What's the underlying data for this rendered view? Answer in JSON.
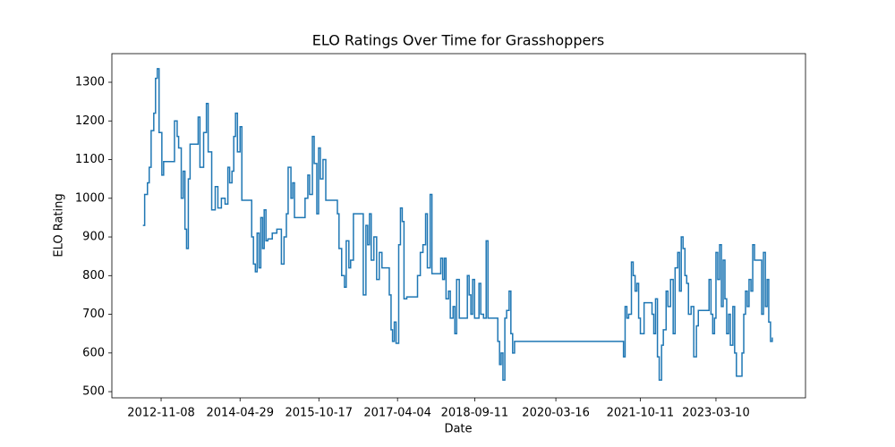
{
  "chart_data": {
    "type": "line",
    "drawstyle": "steps-post",
    "title": "ELO Ratings Over Time for Grasshoppers",
    "xlabel": "Date",
    "ylabel": "ELO Rating",
    "color": "#1f77b4",
    "xlim": [
      "2011-12-09",
      "2024-11-08"
    ],
    "xticks": [
      "2012-11-08",
      "2014-04-29",
      "2015-10-17",
      "2017-04-04",
      "2018-09-11",
      "2020-03-16",
      "2021-10-11",
      "2023-03-10"
    ],
    "ylim": [
      484,
      1374
    ],
    "yticks": [
      500,
      600,
      700,
      800,
      900,
      1000,
      1100,
      1200,
      1300
    ],
    "x": [
      "2012-07-07",
      "2012-07-19",
      "2012-08-07",
      "2012-08-19",
      "2012-09-01",
      "2012-09-19",
      "2012-10-01",
      "2012-10-13",
      "2012-10-25",
      "2012-11-13",
      "2012-11-25",
      "2013-01-19",
      "2013-02-07",
      "2013-02-25",
      "2013-03-07",
      "2013-03-25",
      "2013-04-07",
      "2013-04-19",
      "2013-04-30",
      "2013-05-12",
      "2013-05-24",
      "2013-07-06",
      "2013-07-18",
      "2013-07-30",
      "2013-08-24",
      "2013-09-12",
      "2013-09-24",
      "2013-10-18",
      "2013-11-11",
      "2013-11-29",
      "2013-12-23",
      "2014-01-17",
      "2014-02-05",
      "2014-02-17",
      "2014-03-05",
      "2014-03-17",
      "2014-03-29",
      "2014-04-11",
      "2014-04-29",
      "2014-05-11",
      "2014-07-05",
      "2014-07-17",
      "2014-07-29",
      "2014-08-11",
      "2014-08-23",
      "2014-09-05",
      "2014-09-17",
      "2014-09-29",
      "2014-10-10",
      "2014-10-22",
      "2014-11-04",
      "2014-12-04",
      "2015-01-04",
      "2015-02-04",
      "2015-02-22",
      "2015-03-10",
      "2015-03-22",
      "2015-04-10",
      "2015-04-22",
      "2015-05-04",
      "2015-06-21",
      "2015-07-15",
      "2015-08-03",
      "2015-08-15",
      "2015-09-03",
      "2015-09-15",
      "2015-10-03",
      "2015-10-15",
      "2015-10-27",
      "2015-11-14",
      "2015-12-03",
      "2016-02-02",
      "2016-02-20",
      "2016-03-02",
      "2016-03-20",
      "2016-04-08",
      "2016-04-20",
      "2016-05-08",
      "2016-05-20",
      "2016-06-08",
      "2016-07-26",
      "2016-08-14",
      "2016-09-01",
      "2016-09-13",
      "2016-09-25",
      "2016-10-07",
      "2016-10-25",
      "2016-11-13",
      "2016-12-01",
      "2016-12-19",
      "2017-01-25",
      "2017-02-07",
      "2017-02-19",
      "2017-03-01",
      "2017-03-13",
      "2017-03-25",
      "2017-04-12",
      "2017-04-24",
      "2017-05-06",
      "2017-05-18",
      "2017-06-06",
      "2017-07-30",
      "2017-08-18",
      "2017-09-06",
      "2017-09-24",
      "2017-10-12",
      "2017-10-24",
      "2017-11-12",
      "2017-11-24",
      "2018-01-11",
      "2018-01-23",
      "2018-02-05",
      "2018-02-17",
      "2018-02-28",
      "2018-03-17",
      "2018-03-29",
      "2018-04-17",
      "2018-04-29",
      "2018-05-11",
      "2018-05-29",
      "2018-06-29",
      "2018-07-23",
      "2018-08-04",
      "2018-08-16",
      "2018-08-28",
      "2018-09-10",
      "2018-09-28",
      "2018-10-10",
      "2018-10-22",
      "2018-11-10",
      "2018-11-28",
      "2018-12-10",
      "2019-01-28",
      "2019-02-15",
      "2019-02-27",
      "2019-03-10",
      "2019-03-22",
      "2019-04-04",
      "2019-04-16",
      "2019-05-03",
      "2019-05-15",
      "2019-05-27",
      "2019-06-09",
      "2021-06-07",
      "2021-06-19",
      "2021-06-30",
      "2021-07-12",
      "2021-07-24",
      "2021-08-12",
      "2021-08-24",
      "2021-09-06",
      "2021-09-18",
      "2021-09-30",
      "2021-10-12",
      "2021-11-06",
      "2021-12-12",
      "2021-12-30",
      "2022-01-11",
      "2022-01-23",
      "2022-02-05",
      "2022-02-17",
      "2022-03-05",
      "2022-03-17",
      "2022-04-05",
      "2022-04-17",
      "2022-05-05",
      "2022-05-23",
      "2022-06-05",
      "2022-06-23",
      "2022-07-05",
      "2022-07-17",
      "2022-07-29",
      "2022-08-11",
      "2022-08-23",
      "2022-09-04",
      "2022-09-22",
      "2022-10-10",
      "2022-10-28",
      "2022-11-10",
      "2023-01-10",
      "2023-01-22",
      "2023-02-04",
      "2023-02-16",
      "2023-02-28",
      "2023-03-10",
      "2023-03-22",
      "2023-04-04",
      "2023-04-16",
      "2023-04-28",
      "2023-05-10",
      "2023-05-22",
      "2023-06-04",
      "2023-06-16",
      "2023-07-03",
      "2023-07-15",
      "2023-07-27",
      "2023-08-21",
      "2023-09-03",
      "2023-09-15",
      "2023-09-27",
      "2023-10-09",
      "2023-10-21",
      "2023-11-03",
      "2023-11-15",
      "2023-11-27",
      "2024-01-03",
      "2024-01-15",
      "2024-01-27",
      "2024-02-09",
      "2024-02-21",
      "2024-03-03",
      "2024-03-15",
      "2024-03-27"
    ],
    "values": [
      930,
      1010,
      1040,
      1080,
      1175,
      1220,
      1310,
      1335,
      1170,
      1060,
      1095,
      1095,
      1200,
      1160,
      1130,
      1000,
      1070,
      920,
      870,
      1050,
      1140,
      1140,
      1210,
      1080,
      1170,
      1245,
      1120,
      970,
      1030,
      975,
      1000,
      985,
      1080,
      1040,
      1070,
      1160,
      1220,
      1120,
      1185,
      995,
      995,
      900,
      830,
      810,
      910,
      820,
      950,
      870,
      970,
      890,
      895,
      910,
      920,
      830,
      900,
      960,
      1080,
      1000,
      1040,
      950,
      950,
      1000,
      1060,
      1010,
      1160,
      1090,
      960,
      1130,
      1050,
      1100,
      995,
      995,
      960,
      870,
      800,
      770,
      890,
      820,
      840,
      960,
      960,
      750,
      930,
      880,
      960,
      840,
      900,
      790,
      860,
      820,
      820,
      750,
      660,
      630,
      680,
      625,
      880,
      975,
      940,
      740,
      745,
      745,
      800,
      860,
      880,
      960,
      820,
      1010,
      805,
      805,
      845,
      790,
      845,
      740,
      760,
      690,
      720,
      650,
      790,
      690,
      690,
      800,
      750,
      700,
      790,
      690,
      690,
      780,
      700,
      690,
      890,
      690,
      690,
      630,
      570,
      600,
      530,
      690,
      710,
      760,
      650,
      600,
      630,
      630,
      590,
      720,
      690,
      700,
      835,
      800,
      760,
      780,
      690,
      650,
      730,
      730,
      700,
      650,
      740,
      590,
      530,
      620,
      660,
      760,
      720,
      790,
      650,
      820,
      860,
      760,
      900,
      870,
      800,
      780,
      700,
      720,
      590,
      670,
      710,
      710,
      790,
      700,
      650,
      690,
      860,
      790,
      880,
      720,
      840,
      740,
      650,
      700,
      620,
      720,
      600,
      540,
      540,
      600,
      700,
      760,
      720,
      790,
      760,
      880,
      840,
      840,
      700,
      860,
      720,
      790,
      680,
      630,
      640
    ]
  }
}
